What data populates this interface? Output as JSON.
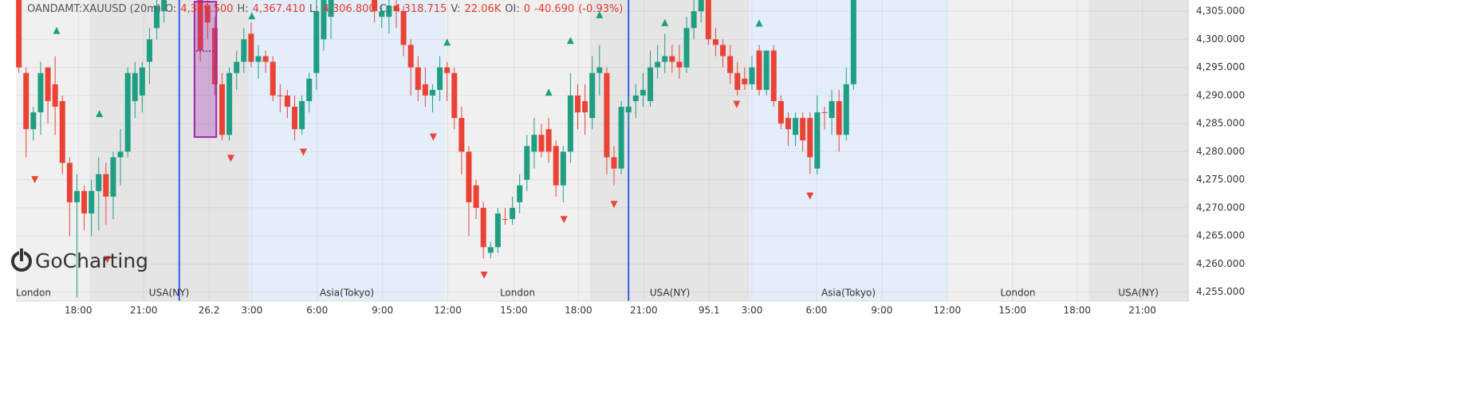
{
  "chart_data": {
    "type": "candlestick",
    "header": {
      "symbol": "OANDAMT:XAUUSD (20m)",
      "fields": [
        {
          "label": "O:",
          "value": "4,309.500"
        },
        {
          "label": "H:",
          "value": "4,367.410"
        },
        {
          "label": "L:",
          "value": "4,306.800"
        },
        {
          "label": "C:",
          "value": "4,318.715"
        },
        {
          "label": "V:",
          "value": "22.06K"
        },
        {
          "label": "OI:",
          "value": "0"
        }
      ],
      "change": "-40.690",
      "change_pct": "(-0.93%)"
    },
    "watermark": "GoCharting",
    "up_color": "#1f9e84",
    "down_color": "#ea4335",
    "x": [
      0,
      1,
      2,
      3,
      4,
      5,
      6,
      7,
      8,
      9,
      10,
      11,
      12,
      13,
      14,
      15,
      16,
      17,
      18,
      19,
      20,
      25,
      26,
      27,
      28,
      29,
      30,
      31,
      32,
      33,
      34,
      35,
      36,
      37,
      38,
      39,
      40,
      41,
      42,
      43,
      49,
      50,
      51,
      52,
      53,
      54,
      55,
      56,
      57,
      58,
      59,
      60,
      61,
      62,
      63,
      64,
      65,
      66,
      67,
      68,
      69,
      70,
      71,
      72,
      73,
      74,
      75,
      76,
      77,
      78,
      79,
      80,
      81,
      82,
      83,
      84,
      85,
      86,
      87,
      88,
      89,
      90,
      91,
      92,
      93,
      94,
      95,
      96,
      97,
      98,
      99,
      100,
      101,
      102,
      103,
      104,
      105,
      106,
      107,
      108,
      109,
      110,
      111,
      112,
      113,
      114,
      115
    ],
    "open": [
      4307,
      4294,
      4284,
      4287,
      4295,
      4292,
      4289,
      4278,
      4271,
      4273,
      4269,
      4273,
      4276,
      4272,
      4279,
      4280,
      4289,
      4290,
      4296,
      4302,
      4305,
      4307,
      4306,
      4302,
      4292,
      4283,
      4294,
      4296,
      4301,
      4296,
      4297,
      4296,
      4290,
      4290,
      4288,
      4284,
      4289,
      4294,
      4300,
      4304,
      4307,
      4304,
      4304,
      4306,
      4305,
      4299,
      4295,
      4292,
      4290,
      4291,
      4295,
      4294,
      4286,
      4280,
      4274,
      4270,
      4262,
      4263,
      4268,
      4268,
      4271,
      4275,
      4280,
      4283,
      4284,
      4281,
      4274,
      4280,
      4290,
      4289,
      4286,
      4294,
      4294,
      4279,
      4277,
      4287,
      4289,
      4290,
      4289,
      4295,
      4296,
      4297,
      4296,
      4295,
      4302,
      4305,
      4307,
      4300,
      4299,
      4297,
      4294,
      4293,
      4292,
      4298,
      4291,
      4298,
      4289,
      4286,
      4283,
      4286,
      4286,
      4277,
      4287,
      4286,
      4289,
      4283,
      4292
    ],
    "high": [
      4307,
      4295,
      4288,
      4296,
      4295,
      4297,
      4290,
      4279,
      4276,
      4274,
      4275,
      4279,
      4278,
      4280,
      4284,
      4295,
      4296,
      4296,
      4302,
      4307,
      4307,
      4307,
      4307,
      4304,
      4294,
      4295,
      4298,
      4302,
      4303,
      4299,
      4298,
      4297,
      4292,
      4291,
      4290,
      4290,
      4294,
      4307,
      4307,
      4307,
      4307,
      4306,
      4307,
      4307,
      4306,
      4300,
      4297,
      4295,
      4292,
      4297,
      4296,
      4295,
      4288,
      4281,
      4275,
      4271,
      4264,
      4270,
      4270,
      4272,
      4276,
      4283,
      4286,
      4285,
      4286,
      4282,
      4281,
      4294,
      4292,
      4292,
      4297,
      4299,
      4295,
      4281,
      4289,
      4290,
      4292,
      4294,
      4298,
      4299,
      4301,
      4299,
      4299,
      4304,
      4307,
      4307,
      4307,
      4302,
      4300,
      4299,
      4296,
      4295,
      4297,
      4299,
      4298,
      4299,
      4290,
      4287,
      4287,
      4287,
      4287,
      4290,
      4288,
      4291,
      4291,
      4295,
      4307
    ],
    "low": [
      4294,
      4279,
      4282,
      4283,
      4285,
      4283,
      4276,
      4265,
      4254,
      4266,
      4265,
      4266,
      4267,
      4268,
      4274,
      4279,
      4286,
      4287,
      4292,
      4300,
      4303,
      4296,
      4300,
      4290,
      4282,
      4282,
      4291,
      4294,
      4295,
      4293,
      4294,
      4289,
      4287,
      4286,
      4282,
      4283,
      4287,
      4291,
      4298,
      4300,
      4303,
      4302,
      4301,
      4302,
      4297,
      4290,
      4289,
      4288,
      4287,
      4289,
      4289,
      4284,
      4276,
      4265,
      4268,
      4261,
      4261,
      4262,
      4267,
      4267,
      4269,
      4273,
      4277,
      4279,
      4278,
      4272,
      4271,
      4278,
      4284,
      4283,
      4284,
      4290,
      4276,
      4274,
      4276,
      4284,
      4286,
      4288,
      4288,
      4293,
      4294,
      4294,
      4293,
      4294,
      4300,
      4303,
      4299,
      4297,
      4295,
      4292,
      4290,
      4291,
      4291,
      4290,
      4290,
      4288,
      4284,
      4281,
      4281,
      4280,
      4276,
      4276,
      4284,
      4283,
      4280,
      4282,
      4291
    ],
    "close": [
      4295,
      4284,
      4287,
      4294,
      4289,
      4288,
      4278,
      4271,
      4273,
      4269,
      4273,
      4276,
      4272,
      4279,
      4280,
      4294,
      4294,
      4295,
      4300,
      4306,
      4307,
      4298,
      4303,
      4292,
      4283,
      4294,
      4296,
      4300,
      4296,
      4297,
      4296,
      4290,
      4290,
      4288,
      4284,
      4289,
      4293,
      4305,
      4307,
      4307,
      4305,
      4305,
      4306,
      4305,
      4299,
      4295,
      4291,
      4290,
      4291,
      4295,
      4294,
      4286,
      4280,
      4271,
      4270,
      4263,
      4263,
      4269,
      4268,
      4270,
      4274,
      4281,
      4283,
      4280,
      4280,
      4274,
      4280,
      4290,
      4287,
      4287,
      4294,
      4295,
      4279,
      4277,
      4288,
      4288,
      4290,
      4291,
      4295,
      4296,
      4297,
      4296,
      4295,
      4302,
      4305,
      4307,
      4300,
      4299,
      4297,
      4294,
      4291,
      4292,
      4295,
      4291,
      4298,
      4289,
      4285,
      4284,
      4286,
      4282,
      4279,
      4287,
      4287,
      4289,
      4283,
      4292,
      4307
    ],
    "sessions": [
      {
        "label": "London",
        "start": -0.4,
        "end": 9.7,
        "color": "#f0f0f0"
      },
      {
        "label": "USA(NY)",
        "start": 9.7,
        "end": 31.7,
        "color": "#e5e5e5"
      },
      {
        "label": "Asia(Tokyo)",
        "start": 31.7,
        "end": 58.7,
        "color": "#e3eefa"
      },
      {
        "label": "London",
        "start": 58.7,
        "end": 78.7,
        "color": "#f0f0f0"
      },
      {
        "label": "USA(NY)",
        "start": 78.7,
        "end": 100.7,
        "color": "#e5e5e5"
      },
      {
        "label": "Asia(Tokyo)",
        "start": 100.7,
        "end": 127.9,
        "color": "#e3eefa"
      },
      {
        "label": "London",
        "start": 127.9,
        "end": 147.4,
        "color": "#f0f0f0"
      },
      {
        "label": "USA(NY)",
        "start": 147.4,
        "end": 161.1,
        "color": "#e5e5e5"
      }
    ],
    "vlines": [
      22.1,
      84.0
    ],
    "vline_color": "#3461e0",
    "highlight": {
      "x": [
        24.2,
        27.2
      ],
      "y": [
        4306.7,
        4282.6
      ],
      "mid": 4297.9,
      "color": "#9c27b0"
    },
    "markers_up": {
      "x": [
        5.2,
        11.1,
        32.1,
        59.0,
        73.0,
        76.0,
        80.0,
        89.0,
        102.0
      ],
      "y": [
        4301.6,
        4286.8,
        4304.2,
        4299.5,
        4290.6,
        4299.8,
        4304.4,
        4303.0,
        4302.9
      ]
    },
    "markers_down": {
      "x": [
        2.2,
        12.2,
        29.2,
        39.2,
        57.1,
        64.1,
        75.1,
        82.0,
        98.9,
        109.0
      ],
      "y": [
        4275.0,
        4260.8,
        4278.8,
        4279.9,
        4282.6,
        4258.0,
        4267.9,
        4270.6,
        4288.4,
        4272.1
      ]
    },
    "xlim": [
      -0.4,
      161.1
    ],
    "xticks": [
      {
        "value": 8.2,
        "label": "18:00"
      },
      {
        "value": 17.2,
        "label": "21:00"
      },
      26.2,
      {
        "value": 32.1,
        "label": "3:00"
      },
      {
        "value": 41.1,
        "label": "6:00"
      },
      {
        "value": 50.1,
        "label": "9:00"
      },
      {
        "value": 59.1,
        "label": "12:00"
      },
      {
        "value": 68.2,
        "label": "15:00"
      },
      {
        "value": 77.1,
        "label": "18:00"
      },
      {
        "value": 86.1,
        "label": "21:00"
      },
      95.1,
      {
        "value": 101.0,
        "label": "3:00"
      },
      {
        "value": 109.9,
        "label": "6:00"
      },
      {
        "value": 118.9,
        "label": "9:00"
      },
      {
        "value": 127.9,
        "label": "12:00"
      },
      {
        "value": 136.9,
        "label": "15:00"
      },
      {
        "value": 145.8,
        "label": "18:00"
      },
      {
        "value": 154.8,
        "label": "21:00"
      }
    ],
    "ylim": [
      4253.4,
      4307
    ],
    "yticks": [
      {
        "value": 4255,
        "label": "4,255.000"
      },
      {
        "value": 4260,
        "label": "4,260.000"
      },
      {
        "value": 4265,
        "label": "4,265.000"
      },
      {
        "value": 4270,
        "label": "4,270.000"
      },
      {
        "value": 4275,
        "label": "4,275.000"
      },
      {
        "value": 4280,
        "label": "4,280.000"
      },
      {
        "value": 4285,
        "label": "4,285.000"
      },
      {
        "value": 4290,
        "label": "4,290.000"
      },
      {
        "value": 4295,
        "label": "4,295.000"
      },
      {
        "value": 4300,
        "label": "4,300.000"
      },
      {
        "value": 4305,
        "label": "4,305.000"
      }
    ],
    "grid": true
  }
}
